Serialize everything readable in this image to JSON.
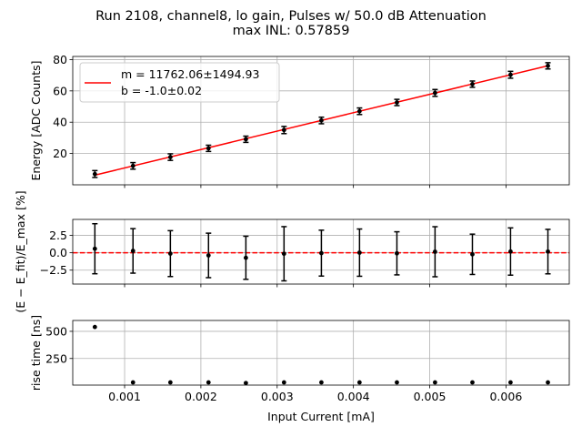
{
  "figure": {
    "title_line1": "Run 2108, channel8, lo gain, Pulses w/ 50.0 dB Attenuation",
    "title_line2": "max INL: 0.57859"
  },
  "chart_data": [
    {
      "type": "scatter",
      "panel": "energy",
      "ylabel": "Energy [ADC Counts]",
      "xlim": [
        0.00032,
        0.00683
      ],
      "ylim": [
        0,
        82
      ],
      "xticks": [
        0.001,
        0.002,
        0.003,
        0.004,
        0.005,
        0.006
      ],
      "xticklabels": [],
      "yticks": [
        20,
        40,
        60,
        80
      ],
      "yticklabels": [
        "20",
        "40",
        "60",
        "80"
      ],
      "grid": true,
      "x": [
        0.00061,
        0.00111,
        0.0016,
        0.0021,
        0.00259,
        0.00309,
        0.00358,
        0.00408,
        0.00457,
        0.00507,
        0.00556,
        0.00606,
        0.00655
      ],
      "y": [
        6.9,
        12.1,
        17.7,
        23.3,
        29.1,
        35.0,
        41.1,
        47.0,
        52.6,
        58.7,
        64.3,
        70.3,
        76.0
      ],
      "yerr": [
        2.2,
        2.1,
        2.1,
        2.0,
        2.0,
        2.3,
        2.1,
        2.1,
        2.0,
        2.2,
        2.0,
        2.2,
        2.0
      ],
      "fit": {
        "color": "#ff0000",
        "slope": 11762.06,
        "intercept": -1.0,
        "legend_m": "m = 11762.06±1494.93",
        "legend_b": "b = -1.0±0.02",
        "legend_location": "upper-left"
      }
    },
    {
      "type": "scatter",
      "panel": "residual",
      "ylabel": "(E − E_fit)/E_max [%]",
      "ylim": [
        -4.5,
        4.8
      ],
      "yticks": [
        -2.5,
        0.0,
        2.5
      ],
      "yticklabels": [
        "−2.5",
        "0.0",
        "2.5"
      ],
      "xticklabels": [],
      "grid": true,
      "zero_line_color": "#ff0000",
      "x": [
        0.00061,
        0.00111,
        0.0016,
        0.0021,
        0.00259,
        0.00309,
        0.00358,
        0.00408,
        0.00457,
        0.00507,
        0.00556,
        0.00606,
        0.00655
      ],
      "y": [
        0.58,
        0.27,
        -0.12,
        -0.38,
        -0.72,
        -0.14,
        -0.05,
        0.02,
        -0.08,
        0.15,
        -0.22,
        0.18,
        0.17
      ],
      "yerr": [
        3.6,
        3.2,
        3.3,
        3.2,
        3.1,
        3.9,
        3.3,
        3.4,
        3.1,
        3.6,
        2.9,
        3.4,
        3.2
      ]
    },
    {
      "type": "scatter",
      "panel": "risetime",
      "xlabel": "Input Current [mA]",
      "ylabel": "rise time [ns]",
      "ylim": [
        5,
        600
      ],
      "yticks": [
        250,
        500
      ],
      "yticklabels": [
        "250",
        "500"
      ],
      "xticklabels": [
        "0.001",
        "0.002",
        "0.003",
        "0.004",
        "0.005",
        "0.006"
      ],
      "grid": true,
      "x": [
        0.00061,
        0.00111,
        0.0016,
        0.0021,
        0.00259,
        0.00309,
        0.00358,
        0.00408,
        0.00457,
        0.00507,
        0.00556,
        0.00606,
        0.00655
      ],
      "y": [
        540,
        30,
        30,
        30,
        24,
        30,
        30,
        30,
        30,
        30,
        30,
        30,
        30
      ]
    }
  ]
}
